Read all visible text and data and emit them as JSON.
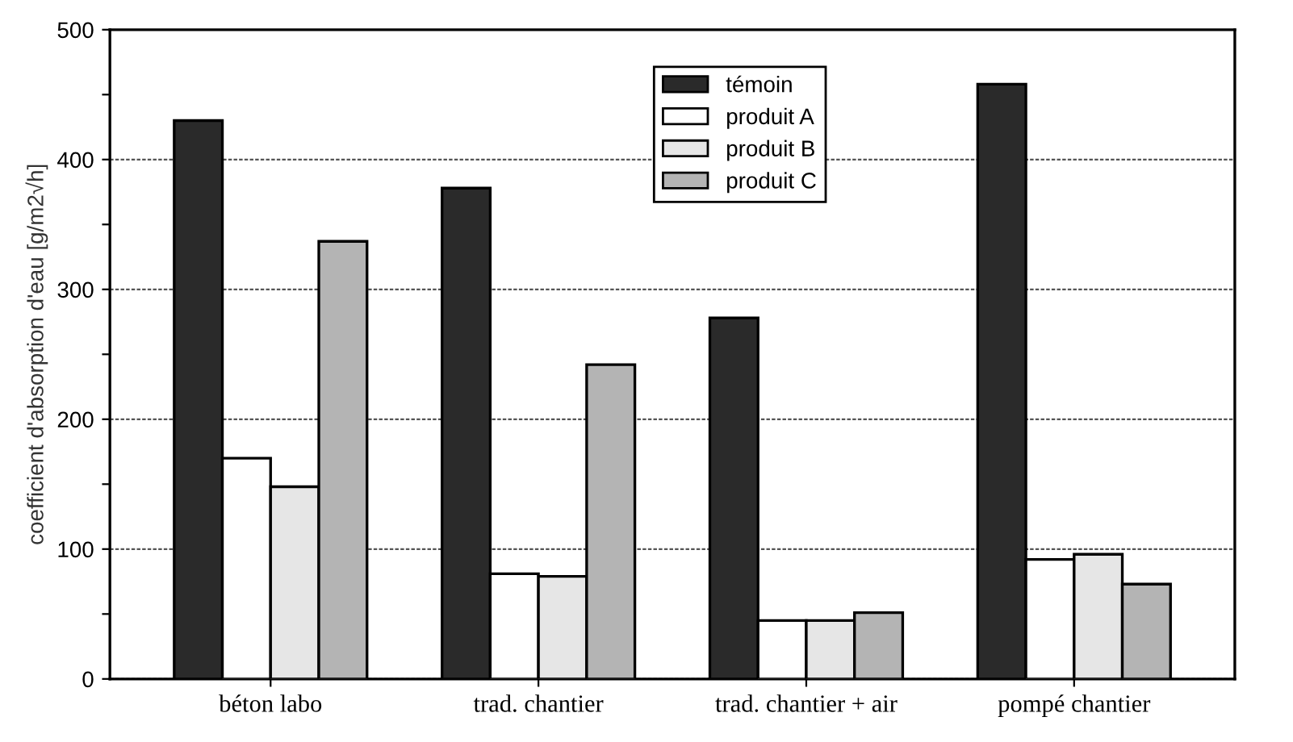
{
  "chart_data": {
    "type": "bar",
    "ylabel": "coefficient d'absorption d'eau [g/m2√h]",
    "categories": [
      "béton labo",
      "trad. chantier",
      "trad. chantier + air",
      "pompé chantier"
    ],
    "series": [
      {
        "name": "témoin",
        "color": "#2a2a2a",
        "values": [
          430,
          378,
          278,
          458
        ]
      },
      {
        "name": "produit A",
        "color": "#ffffff",
        "values": [
          170,
          81,
          45,
          92
        ]
      },
      {
        "name": "produit B",
        "color": "#e6e6e6",
        "values": [
          148,
          79,
          45,
          96
        ]
      },
      {
        "name": "produit C",
        "color": "#b4b4b4",
        "values": [
          337,
          242,
          51,
          73
        ]
      }
    ],
    "ylim": [
      0,
      500
    ],
    "yticks": [
      0,
      {
        "value": 50,
        "label": null
      },
      100,
      {
        "value": 150,
        "label": null
      },
      200,
      {
        "value": 250,
        "label": null
      },
      300,
      {
        "value": 350,
        "label": null
      },
      400,
      {
        "value": 450,
        "label": null
      },
      500
    ],
    "grid": "y",
    "legend": "top"
  }
}
